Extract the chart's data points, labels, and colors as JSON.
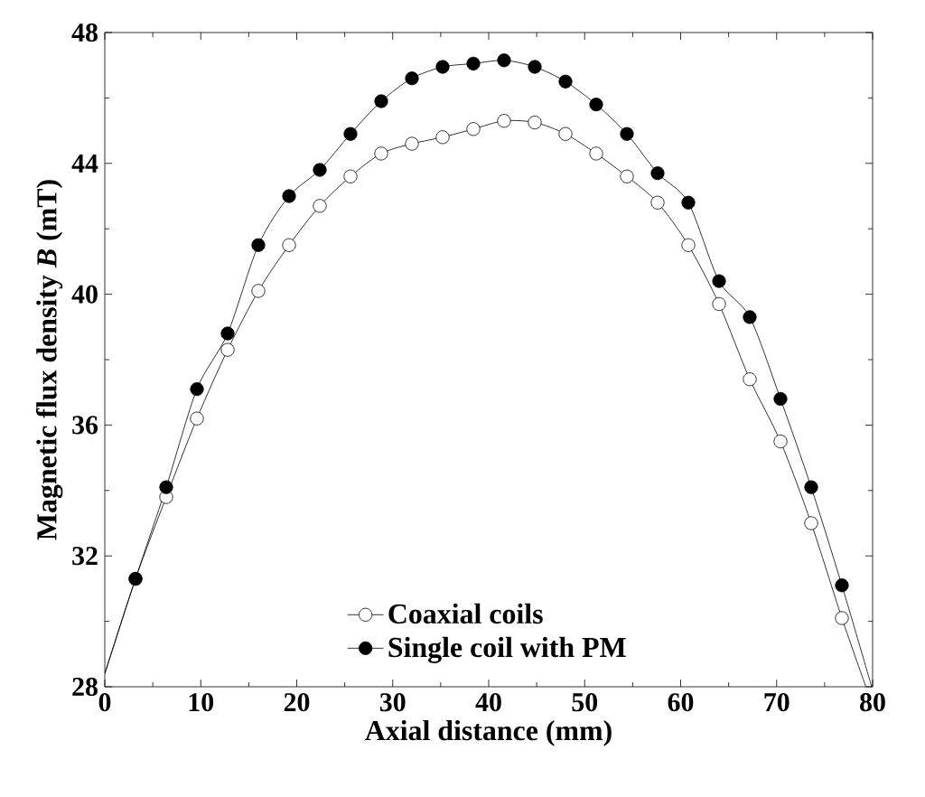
{
  "chart_data": {
    "type": "line",
    "xlabel": "Axial distance (mm)",
    "ylabel": "Magnetic flux density *B* (mT)",
    "xlim": [
      0,
      80
    ],
    "ylim": [
      28,
      48
    ],
    "xticks": [
      0,
      10,
      20,
      30,
      40,
      50,
      60,
      70,
      80
    ],
    "yticks": [
      28,
      32,
      36,
      40,
      44,
      48
    ],
    "legend": "bottom",
    "grid": false,
    "line_style": "solid",
    "series": [
      {
        "name": "Coaxial coils",
        "color": "#ffffff",
        "marker": "circle",
        "x": [
          0,
          3.2,
          6.4,
          9.6,
          12.8,
          16,
          19.2,
          22.4,
          25.6,
          28.8,
          32,
          35.2,
          38.4,
          41.6,
          44.8,
          48,
          51.2,
          54.4,
          57.6,
          60.8,
          64,
          67.2,
          70.4,
          73.6,
          76.8,
          79.3
        ],
        "values": [
          28.4,
          31.3,
          33.8,
          36.2,
          38.3,
          40.1,
          41.5,
          42.7,
          43.6,
          44.3,
          44.6,
          44.8,
          45.05,
          45.3,
          45.25,
          44.9,
          44.3,
          43.6,
          42.8,
          41.5,
          39.7,
          37.4,
          35.5,
          33.0,
          30.1,
          28.0
        ]
      },
      {
        "name": "Single coil with PM",
        "color": "#000000",
        "marker": "circle",
        "x": [
          0,
          3.2,
          6.4,
          9.6,
          12.8,
          16,
          19.2,
          22.4,
          25.6,
          28.8,
          32,
          35.2,
          38.4,
          41.6,
          44.8,
          48,
          51.2,
          54.4,
          57.6,
          60.8,
          64,
          67.2,
          70.4,
          73.6,
          76.8,
          79.9
        ],
        "values": [
          28.4,
          31.3,
          34.1,
          37.1,
          38.8,
          41.5,
          43.0,
          43.8,
          44.9,
          45.9,
          46.6,
          46.95,
          47.05,
          47.15,
          46.95,
          46.5,
          45.8,
          44.9,
          43.7,
          42.8,
          40.4,
          39.3,
          36.8,
          34.1,
          31.1,
          28.0
        ]
      }
    ]
  }
}
